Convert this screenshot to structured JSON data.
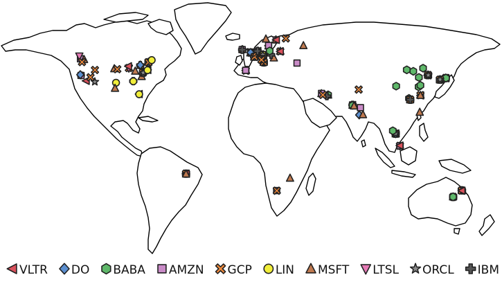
{
  "map": {
    "projection": "equirectangular",
    "lon_range": [
      -180,
      180
    ],
    "lat_range": [
      -60,
      84
    ],
    "legend_placement": "bottom"
  },
  "providers": [
    {
      "id": "VLTR",
      "label": "VLTR",
      "shape": "triangle-left",
      "color": "#d9515c"
    },
    {
      "id": "DO",
      "label": "DO",
      "shape": "diamond",
      "color": "#5b8fd0"
    },
    {
      "id": "BABA",
      "label": "BABA",
      "shape": "hexagon",
      "color": "#5fb86a"
    },
    {
      "id": "AMZN",
      "label": "AMZN",
      "shape": "square",
      "color": "#c98bc7"
    },
    {
      "id": "GCP",
      "label": "GCP",
      "shape": "x",
      "color": "#f08a3c"
    },
    {
      "id": "LIN",
      "label": "LIN",
      "shape": "circle",
      "color": "#f1ee3a"
    },
    {
      "id": "MSFT",
      "label": "MSFT",
      "shape": "triangle-up",
      "color": "#c07a50"
    },
    {
      "id": "LTSL",
      "label": "LTSL",
      "shape": "triangle-down",
      "color": "#e57ab5"
    },
    {
      "id": "ORCL",
      "label": "ORCL",
      "shape": "star",
      "color": "#8a8a8a"
    },
    {
      "id": "IBM",
      "label": "IBM",
      "shape": "plus",
      "color": "#555555"
    }
  ],
  "sites": [
    {
      "p": "AMZN",
      "lon": -122.3,
      "lat": 47.6
    },
    {
      "p": "MSFT",
      "lon": -119.7,
      "lat": 47.2
    },
    {
      "p": "LTSL",
      "lon": -123.1,
      "lat": 49.3
    },
    {
      "p": "LIN",
      "lon": -121.9,
      "lat": 37.4
    },
    {
      "p": "GCP",
      "lon": -121.2,
      "lat": 45.6
    },
    {
      "p": "AMZN",
      "lon": -121.9,
      "lat": 37.3
    },
    {
      "p": "VLTR",
      "lon": -118.2,
      "lat": 34.0
    },
    {
      "p": "GCP",
      "lon": -115.1,
      "lat": 36.2
    },
    {
      "p": "ORCL",
      "lon": -112.0,
      "lat": 33.4
    },
    {
      "p": "DO",
      "lon": -122.4,
      "lat": 37.8
    },
    {
      "p": "GCP",
      "lon": -111.9,
      "lat": 40.7
    },
    {
      "p": "MSFT",
      "lon": -98.0,
      "lat": 41.5
    },
    {
      "p": "GCP",
      "lon": -95.9,
      "lat": 41.2
    },
    {
      "p": "LIN",
      "lon": -96.8,
      "lat": 32.8
    },
    {
      "p": "MSFT",
      "lon": -97.5,
      "lat": 29.4
    },
    {
      "p": "GCP",
      "lon": -87.6,
      "lat": 41.9
    },
    {
      "p": "LTSL",
      "lon": -87.6,
      "lat": 41.8
    },
    {
      "p": "IBM",
      "lon": -84.4,
      "lat": 33.8
    },
    {
      "p": "LIN",
      "lon": -84.4,
      "lat": 33.7
    },
    {
      "p": "VLTR",
      "lon": -80.2,
      "lat": 25.8
    },
    {
      "p": "LIN",
      "lon": -80.2,
      "lat": 25.7
    },
    {
      "p": "AMZN",
      "lon": -77.5,
      "lat": 39.0
    },
    {
      "p": "MSFT",
      "lon": -78.4,
      "lat": 36.7
    },
    {
      "p": "GCP",
      "lon": -77.5,
      "lat": 39.1
    },
    {
      "p": "IBM",
      "lon": -77.4,
      "lat": 38.9
    },
    {
      "p": "ORCL",
      "lon": -77.3,
      "lat": 39.0
    },
    {
      "p": "VLTR",
      "lon": -74.0,
      "lat": 40.7
    },
    {
      "p": "DO",
      "lon": -74.0,
      "lat": 40.8
    },
    {
      "p": "LIN",
      "lon": -74.2,
      "lat": 40.6
    },
    {
      "p": "IBM",
      "lon": -79.4,
      "lat": 43.7
    },
    {
      "p": "MSFT",
      "lon": -79.3,
      "lat": 43.6
    },
    {
      "p": "DO",
      "lon": -79.4,
      "lat": 43.8
    },
    {
      "p": "AMZN",
      "lon": -73.6,
      "lat": 45.5
    },
    {
      "p": "MSFT",
      "lon": -73.6,
      "lat": 45.6
    },
    {
      "p": "IBM",
      "lon": -73.5,
      "lat": 45.4
    },
    {
      "p": "GCP",
      "lon": -73.6,
      "lat": 45.5
    },
    {
      "p": "LIN",
      "lon": -71.2,
      "lat": 46.8
    },
    {
      "p": "VLTR",
      "lon": -87.9,
      "lat": 43.0
    },
    {
      "p": "MSFT",
      "lon": -83.0,
      "lat": 40.0
    },
    {
      "p": "IBM",
      "lon": -46.6,
      "lat": -23.5
    },
    {
      "p": "AMZN",
      "lon": -46.7,
      "lat": -23.6
    },
    {
      "p": "GCP",
      "lon": -46.6,
      "lat": -23.4
    },
    {
      "p": "VLTR",
      "lon": -46.5,
      "lat": -23.5
    },
    {
      "p": "MSFT",
      "lon": -46.6,
      "lat": -23.6
    },
    {
      "p": "AMZN",
      "lon": -6.3,
      "lat": 53.3
    },
    {
      "p": "MSFT",
      "lon": -6.2,
      "lat": 53.4
    },
    {
      "p": "IBM",
      "lon": -6.3,
      "lat": 53.2
    },
    {
      "p": "VLTR",
      "lon": -0.1,
      "lat": 51.5
    },
    {
      "p": "AMZN",
      "lon": -0.2,
      "lat": 51.6
    },
    {
      "p": "GCP",
      "lon": -0.1,
      "lat": 51.4
    },
    {
      "p": "MSFT",
      "lon": -0.5,
      "lat": 51.3
    },
    {
      "p": "IBM",
      "lon": 0.0,
      "lat": 51.5
    },
    {
      "p": "LIN",
      "lon": -0.1,
      "lat": 51.6
    },
    {
      "p": "DO",
      "lon": -0.3,
      "lat": 51.5
    },
    {
      "p": "VLTR",
      "lon": 2.35,
      "lat": 48.9
    },
    {
      "p": "AMZN",
      "lon": 2.4,
      "lat": 48.8
    },
    {
      "p": "MSFT",
      "lon": 2.3,
      "lat": 48.7
    },
    {
      "p": "IBM",
      "lon": 2.3,
      "lat": 48.9
    },
    {
      "p": "GCP",
      "lon": 2.5,
      "lat": 48.8
    },
    {
      "p": "VLTR",
      "lon": 4.9,
      "lat": 52.4
    },
    {
      "p": "AMZN",
      "lon": 4.8,
      "lat": 52.3
    },
    {
      "p": "MSFT",
      "lon": 4.9,
      "lat": 52.5
    },
    {
      "p": "GCP",
      "lon": 3.8,
      "lat": 51.4
    },
    {
      "p": "DO",
      "lon": 4.9,
      "lat": 52.3
    },
    {
      "p": "IBM",
      "lon": 4.7,
      "lat": 52.4
    },
    {
      "p": "VLTR",
      "lon": 8.7,
      "lat": 50.1
    },
    {
      "p": "AMZN",
      "lon": 8.6,
      "lat": 50.1
    },
    {
      "p": "MSFT",
      "lon": 8.7,
      "lat": 50.2
    },
    {
      "p": "GCP",
      "lon": 8.6,
      "lat": 50.0
    },
    {
      "p": "IBM",
      "lon": 8.7,
      "lat": 50.0
    },
    {
      "p": "DO",
      "lon": 8.7,
      "lat": 50.1
    },
    {
      "p": "LIN",
      "lon": 8.6,
      "lat": 50.2
    },
    {
      "p": "ORCL",
      "lon": 8.5,
      "lat": 50.1
    },
    {
      "p": "MSFT",
      "lon": 8.5,
      "lat": 47.4
    },
    {
      "p": "GCP",
      "lon": 8.5,
      "lat": 47.4
    },
    {
      "p": "IBM",
      "lon": 8.6,
      "lat": 47.3
    },
    {
      "p": "AMZN",
      "lon": 9.2,
      "lat": 45.5
    },
    {
      "p": "IBM",
      "lon": 9.2,
      "lat": 45.4
    },
    {
      "p": "MSFT",
      "lon": 9.1,
      "lat": 45.5
    },
    {
      "p": "GCP",
      "lon": 9.2,
      "lat": 45.5
    },
    {
      "p": "VLTR",
      "lon": -3.7,
      "lat": 40.4
    },
    {
      "p": "MSFT",
      "lon": -3.6,
      "lat": 40.5
    },
    {
      "p": "GCP",
      "lon": -3.7,
      "lat": 40.3
    },
    {
      "p": "AMZN",
      "lon": -3.8,
      "lat": 40.5
    },
    {
      "p": "GCP",
      "lon": 21.0,
      "lat": 52.2
    },
    {
      "p": "MSFT",
      "lon": 21.0,
      "lat": 52.3
    },
    {
      "p": "VLTR",
      "lon": 21.0,
      "lat": 52.2
    },
    {
      "p": "AMZN",
      "lon": 18.1,
      "lat": 59.3
    },
    {
      "p": "MSFT",
      "lon": 17.9,
      "lat": 59.4
    },
    {
      "p": "GCP",
      "lon": 25.0,
      "lat": 60.2
    },
    {
      "p": "VLTR",
      "lon": 18.1,
      "lat": 59.3
    },
    {
      "p": "MSFT",
      "lon": 10.7,
      "lat": 59.9
    },
    {
      "p": "VLTR",
      "lon": 12.6,
      "lat": 55.7
    },
    {
      "p": "MSFT",
      "lon": 12.5,
      "lat": 55.6
    },
    {
      "p": "AMZN",
      "lon": 12.6,
      "lat": 55.8
    },
    {
      "p": "MSFT",
      "lon": 16.4,
      "lat": 48.2
    },
    {
      "p": "IBM",
      "lon": 14.4,
      "lat": 50.1
    },
    {
      "p": "GCP",
      "lon": 7.5,
      "lat": 47.0
    },
    {
      "p": "AMZN",
      "lon": 33.0,
      "lat": 45.0
    },
    {
      "p": "MSFT",
      "lon": 37.6,
      "lat": 55.8
    },
    {
      "p": "BABA",
      "lon": 13.4,
      "lat": 52.5
    },
    {
      "p": "MSFT",
      "lon": 55.3,
      "lat": 25.2
    },
    {
      "p": "BABA",
      "lon": 55.3,
      "lat": 25.3
    },
    {
      "p": "IBM",
      "lon": 54.4,
      "lat": 24.5
    },
    {
      "p": "MSFT",
      "lon": 50.5,
      "lat": 26.1
    },
    {
      "p": "AMZN",
      "lon": 50.6,
      "lat": 26.2
    },
    {
      "p": "GCP",
      "lon": 51.5,
      "lat": 25.3
    },
    {
      "p": "IBM",
      "lon": 72.9,
      "lat": 19.1
    },
    {
      "p": "MSFT",
      "lon": 72.8,
      "lat": 18.9
    },
    {
      "p": "VLTR",
      "lon": 72.9,
      "lat": 19.0
    },
    {
      "p": "AMZN",
      "lon": 72.8,
      "lat": 19.1
    },
    {
      "p": "GCP",
      "lon": 77.2,
      "lat": 28.6
    },
    {
      "p": "DO",
      "lon": 77.6,
      "lat": 12.9
    },
    {
      "p": "MSFT",
      "lon": 80.3,
      "lat": 13.1
    },
    {
      "p": "BABA",
      "lon": 72.8,
      "lat": 18.8
    },
    {
      "p": "AMZN",
      "lon": 78.5,
      "lat": 17.4
    },
    {
      "p": "MSFT",
      "lon": 73.9,
      "lat": 18.5
    },
    {
      "p": "BABA",
      "lon": 103.8,
      "lat": 1.3
    },
    {
      "p": "AMZN",
      "lon": 103.9,
      "lat": 1.4
    },
    {
      "p": "MSFT",
      "lon": 103.8,
      "lat": 1.2
    },
    {
      "p": "GCP",
      "lon": 103.8,
      "lat": 1.3
    },
    {
      "p": "IBM",
      "lon": 103.7,
      "lat": 1.3
    },
    {
      "p": "LIN",
      "lon": 103.9,
      "lat": 1.3
    },
    {
      "p": "VLTR",
      "lon": 103.8,
      "lat": 1.4
    },
    {
      "p": "DO",
      "lon": 103.8,
      "lat": 1.3
    },
    {
      "p": "ORCL",
      "lon": 103.7,
      "lat": 1.4
    },
    {
      "p": "BABA",
      "lon": 101.7,
      "lat": 3.1
    },
    {
      "p": "GCP",
      "lon": 106.8,
      "lat": -6.2
    },
    {
      "p": "BABA",
      "lon": 106.8,
      "lat": -6.3
    },
    {
      "p": "AMZN",
      "lon": 106.9,
      "lat": -6.2
    },
    {
      "p": "VLTR",
      "lon": 106.8,
      "lat": -6.1
    },
    {
      "p": "MSFT",
      "lon": 121.0,
      "lat": 14.6
    },
    {
      "p": "BABA",
      "lon": 116.4,
      "lat": 39.9
    },
    {
      "p": "BABA",
      "lon": 120.2,
      "lat": 30.3
    },
    {
      "p": "BABA",
      "lon": 121.5,
      "lat": 31.2
    },
    {
      "p": "BABA",
      "lon": 114.1,
      "lat": 22.5
    },
    {
      "p": "BABA",
      "lon": 113.3,
      "lat": 23.1
    },
    {
      "p": "BABA",
      "lon": 111.7,
      "lat": 40.8
    },
    {
      "p": "BABA",
      "lon": 104.1,
      "lat": 30.7
    },
    {
      "p": "BABA",
      "lon": 123.4,
      "lat": 41.8
    },
    {
      "p": "BABA",
      "lon": 120.4,
      "lat": 36.1
    },
    {
      "p": "AMZN",
      "lon": 114.2,
      "lat": 22.3
    },
    {
      "p": "MSFT",
      "lon": 114.1,
      "lat": 22.3
    },
    {
      "p": "GCP",
      "lon": 114.2,
      "lat": 22.4
    },
    {
      "p": "IBM",
      "lon": 114.2,
      "lat": 22.3
    },
    {
      "p": "VLTR",
      "lon": 121.6,
      "lat": 25.0
    },
    {
      "p": "GCP",
      "lon": 121.5,
      "lat": 25.1
    },
    {
      "p": "MSFT",
      "lon": 121.5,
      "lat": 25.0
    },
    {
      "p": "MSFT",
      "lon": 126.9,
      "lat": 37.6
    },
    {
      "p": "AMZN",
      "lon": 126.9,
      "lat": 37.5
    },
    {
      "p": "GCP",
      "lon": 127.0,
      "lat": 37.6
    },
    {
      "p": "IBM",
      "lon": 126.9,
      "lat": 37.5
    },
    {
      "p": "VLTR",
      "lon": 126.8,
      "lat": 37.4
    },
    {
      "p": "ORCL",
      "lon": 127.1,
      "lat": 37.5
    },
    {
      "p": "IBM",
      "lon": 139.7,
      "lat": 35.7
    },
    {
      "p": "AMZN",
      "lon": 139.8,
      "lat": 35.6
    },
    {
      "p": "MSFT",
      "lon": 139.6,
      "lat": 35.7
    },
    {
      "p": "GCP",
      "lon": 139.7,
      "lat": 35.8
    },
    {
      "p": "VLTR",
      "lon": 139.7,
      "lat": 35.6
    },
    {
      "p": "LIN",
      "lon": 139.7,
      "lat": 35.7
    },
    {
      "p": "ORCL",
      "lon": 139.6,
      "lat": 35.6
    },
    {
      "p": "BABA",
      "lon": 139.8,
      "lat": 35.7
    },
    {
      "p": "AMZN",
      "lon": 135.5,
      "lat": 34.7
    },
    {
      "p": "MSFT",
      "lon": 135.5,
      "lat": 34.6
    },
    {
      "p": "GCP",
      "lon": 135.4,
      "lat": 34.7
    },
    {
      "p": "IBM",
      "lon": 135.5,
      "lat": 34.7
    },
    {
      "p": "ORCL",
      "lon": 135.6,
      "lat": 34.8
    },
    {
      "p": "AMZN",
      "lon": 18.4,
      "lat": -33.9
    },
    {
      "p": "MSFT",
      "lon": 28.0,
      "lat": -26.2
    },
    {
      "p": "GCP",
      "lon": 18.5,
      "lat": -34.0
    },
    {
      "p": "ORCL",
      "lon": 151.2,
      "lat": -33.9
    },
    {
      "p": "IBM",
      "lon": 151.3,
      "lat": -33.8
    },
    {
      "p": "MSFT",
      "lon": 151.2,
      "lat": -33.9
    },
    {
      "p": "AMZN",
      "lon": 151.2,
      "lat": -33.8
    },
    {
      "p": "GCP",
      "lon": 151.1,
      "lat": -33.9
    },
    {
      "p": "VLTR",
      "lon": 151.2,
      "lat": -34.0
    },
    {
      "p": "MSFT",
      "lon": 144.9,
      "lat": -37.8
    },
    {
      "p": "GCP",
      "lon": 145.0,
      "lat": -37.8
    },
    {
      "p": "IBM",
      "lon": 145.0,
      "lat": -37.9
    },
    {
      "p": "BABA",
      "lon": 144.9,
      "lat": -37.8
    }
  ]
}
